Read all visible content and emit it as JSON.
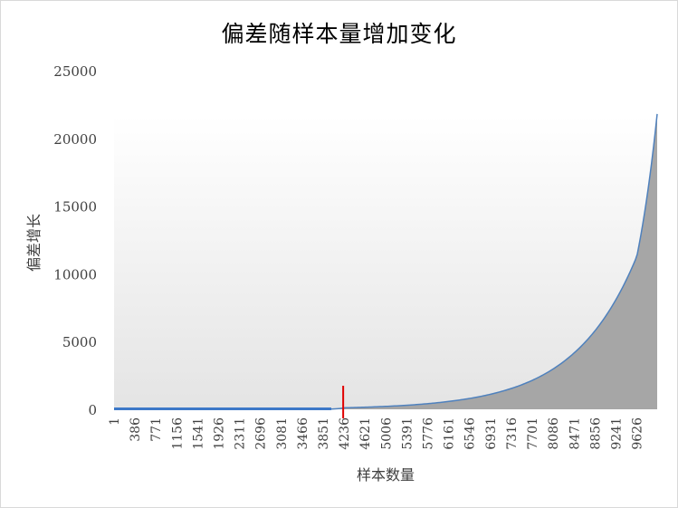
{
  "chart_data": {
    "type": "area",
    "title": "偏差随样本量增加变化",
    "xlabel": "样本数量",
    "ylabel": "偏差增长",
    "x_tick_labels": [
      "1",
      "386",
      "771",
      "1156",
      "1541",
      "1926",
      "2311",
      "2696",
      "3081",
      "3466",
      "3851",
      "4236",
      "4621",
      "5006",
      "5391",
      "5776",
      "6161",
      "6546",
      "6931",
      "7316",
      "7701",
      "8086",
      "8471",
      "8856",
      "9241",
      "9626"
    ],
    "y_ticks": [
      0,
      5000,
      10000,
      15000,
      20000,
      25000
    ],
    "xlim": [
      1,
      10000
    ],
    "ylim": [
      0,
      25000
    ],
    "series": [
      {
        "values_x": [
          1,
          386,
          771,
          1156,
          1541,
          1926,
          2311,
          2696,
          3081,
          3466,
          3851,
          4000,
          4236,
          4621,
          5006,
          5391,
          5776,
          6161,
          6546,
          6931,
          7316,
          7701,
          8086,
          8471,
          8856,
          9241,
          9626,
          10000
        ],
        "values_y": [
          20,
          20,
          20,
          20,
          20,
          20,
          20,
          20,
          20,
          20,
          20,
          20,
          110,
          155,
          215,
          300,
          415,
          580,
          800,
          1110,
          1540,
          2140,
          2980,
          4160,
          5800,
          8100,
          11300,
          21800
        ]
      }
    ],
    "marker_line": {
      "x": 4236,
      "color": "#e00000"
    },
    "colors": {
      "line": "#4f81bd",
      "line_baseline": "#3c78c8",
      "area_fill": "#a6a6a6",
      "plot_bg_top": "#ffffff",
      "plot_bg_bottom": "#e4e4e4"
    },
    "grid": false,
    "legend": "none"
  }
}
